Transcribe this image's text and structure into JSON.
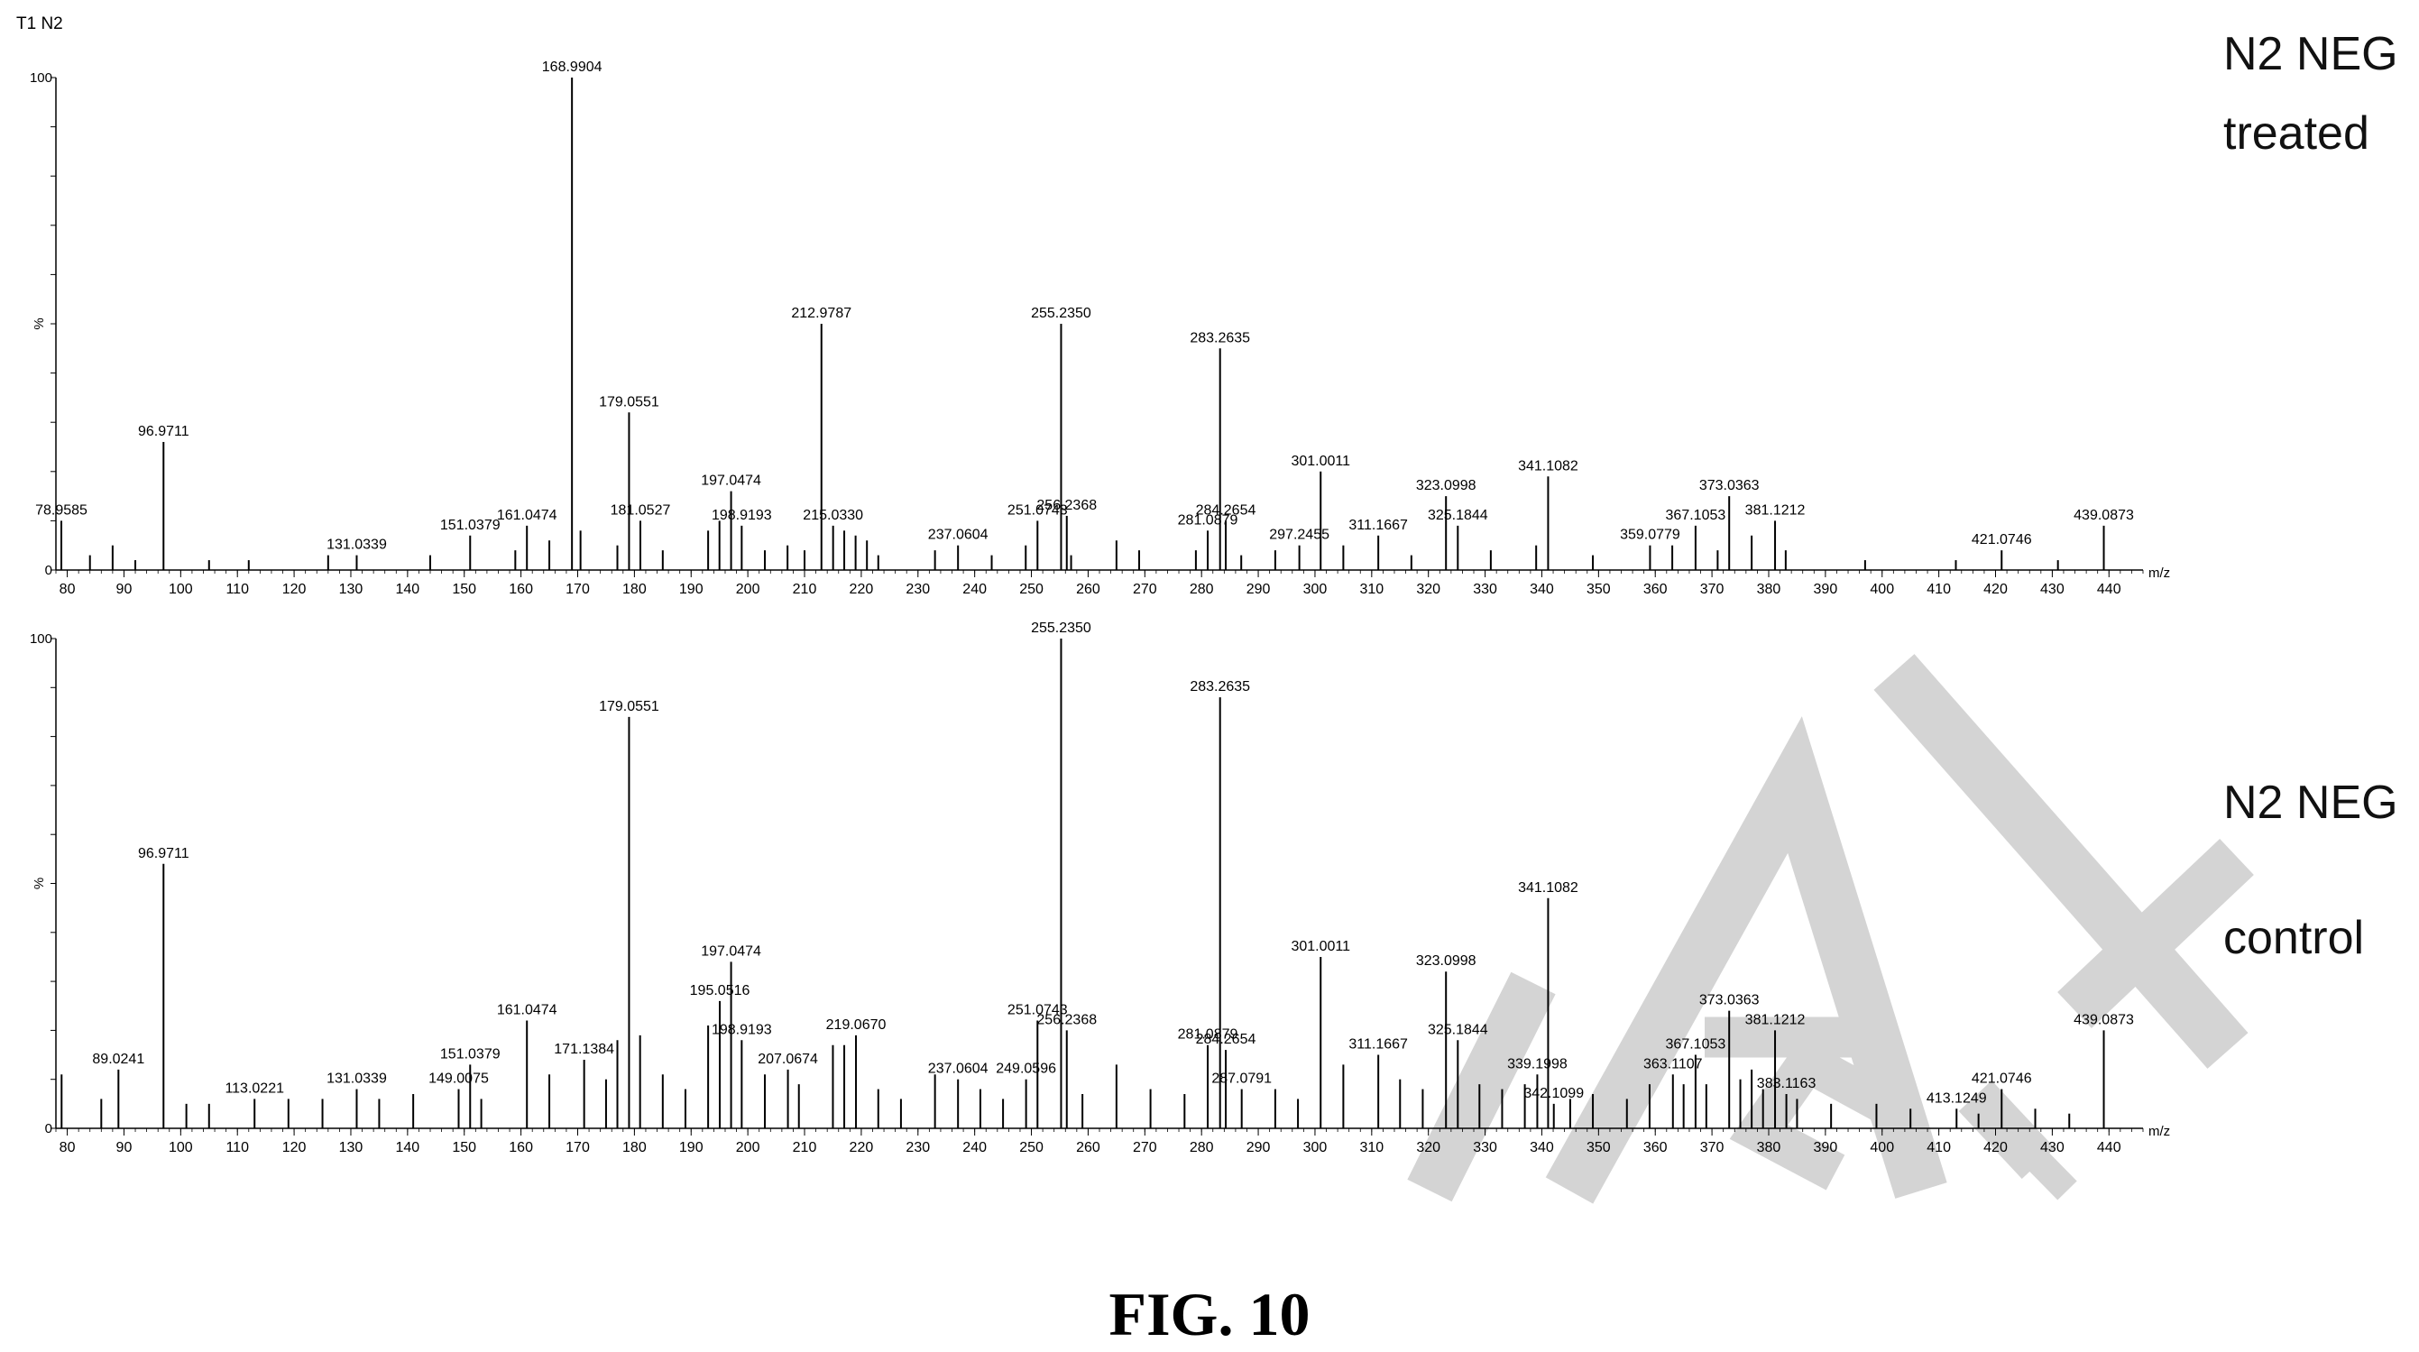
{
  "header": {
    "title": "T1 N2"
  },
  "labels": {
    "top_line1": "N2 NEG",
    "top_line2": "treated",
    "bottom_line1": "N2 NEG",
    "bottom_line2": "control"
  },
  "caption": "FIG. 10",
  "colors": {
    "ink": "#000000",
    "watermark": "#d4d4d4"
  },
  "chart_data": [
    {
      "type": "bar",
      "name": "N2 NEG treated",
      "xlabel": "m/z",
      "ylabel": "%",
      "xlim": [
        78,
        446
      ],
      "ylim": [
        0,
        100
      ],
      "x_ticks": [
        80,
        90,
        100,
        110,
        120,
        130,
        140,
        150,
        160,
        170,
        180,
        190,
        200,
        210,
        220,
        230,
        240,
        250,
        260,
        270,
        280,
        290,
        300,
        310,
        320,
        330,
        340,
        350,
        360,
        370,
        380,
        390,
        400,
        410,
        420,
        430,
        440
      ],
      "y_ticks": [
        0,
        100
      ],
      "peaks": [
        {
          "mz": 78.9585,
          "intensity": 10,
          "label": "78.9585"
        },
        {
          "mz": 96.9711,
          "intensity": 26,
          "label": "96.9711"
        },
        {
          "mz": 131.0339,
          "intensity": 3,
          "label": "131.0339"
        },
        {
          "mz": 151.0379,
          "intensity": 7,
          "label": "151.0379"
        },
        {
          "mz": 161.0474,
          "intensity": 9,
          "label": "161.0474"
        },
        {
          "mz": 168.9904,
          "intensity": 100,
          "label": "168.9904"
        },
        {
          "mz": 179.0551,
          "intensity": 32,
          "label": "179.0551"
        },
        {
          "mz": 181.0527,
          "intensity": 10,
          "label": "181.0527"
        },
        {
          "mz": 197.0474,
          "intensity": 16,
          "label": "197.0474"
        },
        {
          "mz": 198.9193,
          "intensity": 9,
          "label": "198.9193"
        },
        {
          "mz": 212.9787,
          "intensity": 50,
          "label": "212.9787"
        },
        {
          "mz": 215.033,
          "intensity": 9,
          "label": "215.0330"
        },
        {
          "mz": 237.0604,
          "intensity": 5,
          "label": "237.0604"
        },
        {
          "mz": 251.0743,
          "intensity": 10,
          "label": "251.0743"
        },
        {
          "mz": 255.235,
          "intensity": 50,
          "label": "255.2350"
        },
        {
          "mz": 256.2368,
          "intensity": 11,
          "label": "256.2368"
        },
        {
          "mz": 281.0879,
          "intensity": 8,
          "label": "281.0879"
        },
        {
          "mz": 283.2635,
          "intensity": 45,
          "label": "283.2635"
        },
        {
          "mz": 284.2654,
          "intensity": 10,
          "label": "284.2654"
        },
        {
          "mz": 297.2455,
          "intensity": 5,
          "label": "297.2455"
        },
        {
          "mz": 301.0011,
          "intensity": 20,
          "label": "301.0011"
        },
        {
          "mz": 311.1667,
          "intensity": 7,
          "label": "311.1667"
        },
        {
          "mz": 323.0998,
          "intensity": 15,
          "label": "323.0998"
        },
        {
          "mz": 325.1844,
          "intensity": 9,
          "label": "325.1844"
        },
        {
          "mz": 341.1082,
          "intensity": 19,
          "label": "341.1082"
        },
        {
          "mz": 359.0779,
          "intensity": 5,
          "label": "359.0779"
        },
        {
          "mz": 367.1053,
          "intensity": 9,
          "label": "367.1053"
        },
        {
          "mz": 373.0363,
          "intensity": 15,
          "label": "373.0363"
        },
        {
          "mz": 381.1212,
          "intensity": 10,
          "label": "381.1212"
        },
        {
          "mz": 421.0746,
          "intensity": 4,
          "label": "421.0746"
        },
        {
          "mz": 439.0873,
          "intensity": 9,
          "label": "439.0873"
        },
        {
          "mz": 84,
          "intensity": 3
        },
        {
          "mz": 88,
          "intensity": 5
        },
        {
          "mz": 92,
          "intensity": 2
        },
        {
          "mz": 105,
          "intensity": 2
        },
        {
          "mz": 112,
          "intensity": 2
        },
        {
          "mz": 126,
          "intensity": 3
        },
        {
          "mz": 144,
          "intensity": 3
        },
        {
          "mz": 159,
          "intensity": 4
        },
        {
          "mz": 165,
          "intensity": 6
        },
        {
          "mz": 170.5,
          "intensity": 8
        },
        {
          "mz": 177,
          "intensity": 5
        },
        {
          "mz": 185,
          "intensity": 4
        },
        {
          "mz": 193,
          "intensity": 8
        },
        {
          "mz": 195,
          "intensity": 10
        },
        {
          "mz": 203,
          "intensity": 4
        },
        {
          "mz": 207,
          "intensity": 5
        },
        {
          "mz": 210,
          "intensity": 4
        },
        {
          "mz": 217,
          "intensity": 8
        },
        {
          "mz": 219,
          "intensity": 7
        },
        {
          "mz": 221,
          "intensity": 6
        },
        {
          "mz": 223,
          "intensity": 3
        },
        {
          "mz": 233,
          "intensity": 4
        },
        {
          "mz": 243,
          "intensity": 3
        },
        {
          "mz": 249,
          "intensity": 5
        },
        {
          "mz": 257,
          "intensity": 3
        },
        {
          "mz": 265,
          "intensity": 6
        },
        {
          "mz": 269,
          "intensity": 4
        },
        {
          "mz": 279,
          "intensity": 4
        },
        {
          "mz": 287,
          "intensity": 3
        },
        {
          "mz": 293,
          "intensity": 4
        },
        {
          "mz": 305,
          "intensity": 5
        },
        {
          "mz": 317,
          "intensity": 3
        },
        {
          "mz": 331,
          "intensity": 4
        },
        {
          "mz": 339,
          "intensity": 5
        },
        {
          "mz": 349,
          "intensity": 3
        },
        {
          "mz": 363,
          "intensity": 5
        },
        {
          "mz": 371,
          "intensity": 4
        },
        {
          "mz": 377,
          "intensity": 7
        },
        {
          "mz": 383,
          "intensity": 4
        },
        {
          "mz": 397,
          "intensity": 2
        },
        {
          "mz": 413,
          "intensity": 2
        },
        {
          "mz": 431,
          "intensity": 2
        }
      ]
    },
    {
      "type": "bar",
      "name": "N2 NEG control",
      "xlabel": "m/z",
      "ylabel": "%",
      "xlim": [
        78,
        446
      ],
      "ylim": [
        0,
        100
      ],
      "x_ticks": [
        80,
        90,
        100,
        110,
        120,
        130,
        140,
        150,
        160,
        170,
        180,
        190,
        200,
        210,
        220,
        230,
        240,
        250,
        260,
        270,
        280,
        290,
        300,
        310,
        320,
        330,
        340,
        350,
        360,
        370,
        380,
        390,
        400,
        410,
        420,
        430,
        440
      ],
      "y_ticks": [
        0,
        100
      ],
      "peaks": [
        {
          "mz": 89.0241,
          "intensity": 12,
          "label": "89.0241"
        },
        {
          "mz": 96.9711,
          "intensity": 54,
          "label": "96.9711"
        },
        {
          "mz": 113.0221,
          "intensity": 6,
          "label": "113.0221"
        },
        {
          "mz": 131.0339,
          "intensity": 8,
          "label": "131.0339"
        },
        {
          "mz": 149.0075,
          "intensity": 8,
          "label": "149.0075"
        },
        {
          "mz": 151.0379,
          "intensity": 13,
          "label": "151.0379"
        },
        {
          "mz": 161.0474,
          "intensity": 22,
          "label": "161.0474"
        },
        {
          "mz": 171.1384,
          "intensity": 14,
          "label": "171.1384"
        },
        {
          "mz": 179.0551,
          "intensity": 84,
          "label": "179.0551"
        },
        {
          "mz": 195.0516,
          "intensity": 26,
          "label": "195.0516"
        },
        {
          "mz": 197.0474,
          "intensity": 34,
          "label": "197.0474"
        },
        {
          "mz": 198.9193,
          "intensity": 18,
          "label": "198.9193"
        },
        {
          "mz": 207.0674,
          "intensity": 12,
          "label": "207.0674"
        },
        {
          "mz": 219.067,
          "intensity": 19,
          "label": "219.0670"
        },
        {
          "mz": 237.0604,
          "intensity": 10,
          "label": "237.0604"
        },
        {
          "mz": 249.0596,
          "intensity": 10,
          "label": "249.0596"
        },
        {
          "mz": 251.0743,
          "intensity": 22,
          "label": "251.0743"
        },
        {
          "mz": 255.235,
          "intensity": 100,
          "label": "255.2350"
        },
        {
          "mz": 256.2368,
          "intensity": 20,
          "label": "256.2368"
        },
        {
          "mz": 281.0879,
          "intensity": 17,
          "label": "281.0879"
        },
        {
          "mz": 283.2635,
          "intensity": 88,
          "label": "283.2635"
        },
        {
          "mz": 284.2654,
          "intensity": 16,
          "label": "284.2654"
        },
        {
          "mz": 287.0791,
          "intensity": 8,
          "label": "287.0791"
        },
        {
          "mz": 301.0011,
          "intensity": 35,
          "label": "301.0011"
        },
        {
          "mz": 311.1667,
          "intensity": 15,
          "label": "311.1667"
        },
        {
          "mz": 323.0998,
          "intensity": 32,
          "label": "323.0998"
        },
        {
          "mz": 325.1844,
          "intensity": 18,
          "label": "325.1844"
        },
        {
          "mz": 339.1998,
          "intensity": 11,
          "label": "339.1998"
        },
        {
          "mz": 341.1082,
          "intensity": 47,
          "label": "341.1082"
        },
        {
          "mz": 342.1099,
          "intensity": 5,
          "label": "342.1099"
        },
        {
          "mz": 363.1107,
          "intensity": 11,
          "label": "363.1107"
        },
        {
          "mz": 367.1053,
          "intensity": 15,
          "label": "367.1053"
        },
        {
          "mz": 373.0363,
          "intensity": 24,
          "label": "373.0363"
        },
        {
          "mz": 381.1212,
          "intensity": 20,
          "label": "381.1212"
        },
        {
          "mz": 383.1163,
          "intensity": 7,
          "label": "383.1163"
        },
        {
          "mz": 413.1249,
          "intensity": 4,
          "label": "413.1249"
        },
        {
          "mz": 421.0746,
          "intensity": 8,
          "label": "421.0746"
        },
        {
          "mz": 439.0873,
          "intensity": 20,
          "label": "439.0873"
        },
        {
          "mz": 79,
          "intensity": 11
        },
        {
          "mz": 86,
          "intensity": 6
        },
        {
          "mz": 101,
          "intensity": 5
        },
        {
          "mz": 105,
          "intensity": 5
        },
        {
          "mz": 119,
          "intensity": 6
        },
        {
          "mz": 125,
          "intensity": 6
        },
        {
          "mz": 135,
          "intensity": 6
        },
        {
          "mz": 141,
          "intensity": 7
        },
        {
          "mz": 153,
          "intensity": 6
        },
        {
          "mz": 165,
          "intensity": 11
        },
        {
          "mz": 175,
          "intensity": 10
        },
        {
          "mz": 177,
          "intensity": 18
        },
        {
          "mz": 181,
          "intensity": 19
        },
        {
          "mz": 185,
          "intensity": 11
        },
        {
          "mz": 189,
          "intensity": 8
        },
        {
          "mz": 193,
          "intensity": 21
        },
        {
          "mz": 203,
          "intensity": 11
        },
        {
          "mz": 209,
          "intensity": 9
        },
        {
          "mz": 215,
          "intensity": 17
        },
        {
          "mz": 217,
          "intensity": 17
        },
        {
          "mz": 223,
          "intensity": 8
        },
        {
          "mz": 227,
          "intensity": 6
        },
        {
          "mz": 233,
          "intensity": 11
        },
        {
          "mz": 241,
          "intensity": 8
        },
        {
          "mz": 245,
          "intensity": 6
        },
        {
          "mz": 259,
          "intensity": 7
        },
        {
          "mz": 265,
          "intensity": 13
        },
        {
          "mz": 271,
          "intensity": 8
        },
        {
          "mz": 277,
          "intensity": 7
        },
        {
          "mz": 293,
          "intensity": 8
        },
        {
          "mz": 297,
          "intensity": 6
        },
        {
          "mz": 305,
          "intensity": 13
        },
        {
          "mz": 315,
          "intensity": 10
        },
        {
          "mz": 319,
          "intensity": 8
        },
        {
          "mz": 329,
          "intensity": 9
        },
        {
          "mz": 333,
          "intensity": 8
        },
        {
          "mz": 337,
          "intensity": 9
        },
        {
          "mz": 345,
          "intensity": 6
        },
        {
          "mz": 349,
          "intensity": 7
        },
        {
          "mz": 355,
          "intensity": 6
        },
        {
          "mz": 359,
          "intensity": 9
        },
        {
          "mz": 365,
          "intensity": 9
        },
        {
          "mz": 369,
          "intensity": 9
        },
        {
          "mz": 375,
          "intensity": 10
        },
        {
          "mz": 377,
          "intensity": 12
        },
        {
          "mz": 379,
          "intensity": 8
        },
        {
          "mz": 385,
          "intensity": 6
        },
        {
          "mz": 391,
          "intensity": 5
        },
        {
          "mz": 399,
          "intensity": 5
        },
        {
          "mz": 405,
          "intensity": 4
        },
        {
          "mz": 417,
          "intensity": 3
        },
        {
          "mz": 427,
          "intensity": 4
        },
        {
          "mz": 433,
          "intensity": 3
        }
      ]
    }
  ]
}
